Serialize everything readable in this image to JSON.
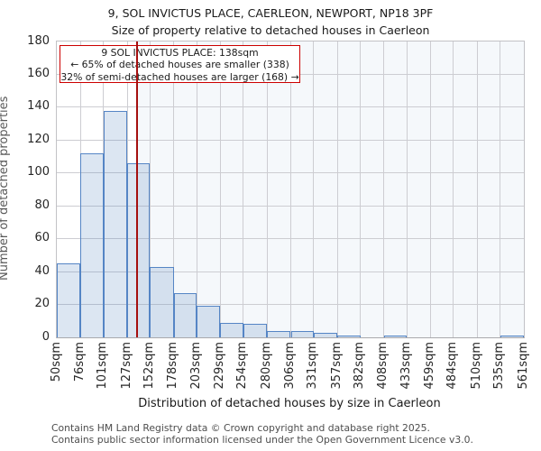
{
  "page": {
    "title": "9, SOL INVICTUS PLACE, CAERLEON, NEWPORT, NP18 3PF",
    "subtitle": "Size of property relative to detached houses in Caerleon",
    "footer_line1": "Contains HM Land Registry data © Crown copyright and database right 2025.",
    "footer_line2": "Contains public sector information licensed under the Open Government Licence v3.0."
  },
  "chart_data": {
    "type": "bar",
    "title": "9, SOL INVICTUS PLACE, CAERLEON, NEWPORT, NP18 3PF",
    "subtitle": "Size of property relative to detached houses in Caerleon",
    "xlabel": "Distribution of detached houses by size in Caerleon",
    "ylabel": "Number of detached properties",
    "ylim": [
      0,
      180
    ],
    "y_ticks": [
      0,
      20,
      40,
      60,
      80,
      100,
      120,
      140,
      160,
      180
    ],
    "bin_edges_sqm": [
      50,
      76,
      101,
      127,
      152,
      178,
      203,
      229,
      254,
      280,
      306,
      331,
      357,
      382,
      408,
      433,
      459,
      484,
      510,
      535,
      561
    ],
    "x_tick_labels": [
      "50sqm",
      "76sqm",
      "101sqm",
      "127sqm",
      "152sqm",
      "178sqm",
      "203sqm",
      "229sqm",
      "254sqm",
      "280sqm",
      "306sqm",
      "331sqm",
      "357sqm",
      "382sqm",
      "408sqm",
      "433sqm",
      "459sqm",
      "484sqm",
      "510sqm",
      "535sqm",
      "561sqm"
    ],
    "values": [
      45,
      112,
      138,
      106,
      43,
      27,
      19,
      9,
      8,
      4,
      4,
      3,
      1,
      0,
      1,
      0,
      0,
      0,
      0,
      1
    ],
    "grid": true,
    "legend": null,
    "marker_sqm": 138,
    "shade_from_sqm": 138,
    "annotation": {
      "line1": "9 SOL INVICTUS PLACE: 138sqm",
      "line2": "← 65% of detached houses are smaller (338)",
      "line3": "32% of semi-detached houses are larger (168) →"
    },
    "colors": {
      "bar_fill": "rgba(79,129,189,0.20)",
      "bar_border": "#5585c5",
      "marker_line": "#a50f0f",
      "annotation_border": "#cc0000",
      "shade_fill": "rgba(79,129,189,0.06)",
      "grid_line": "#cdcdd2"
    }
  }
}
